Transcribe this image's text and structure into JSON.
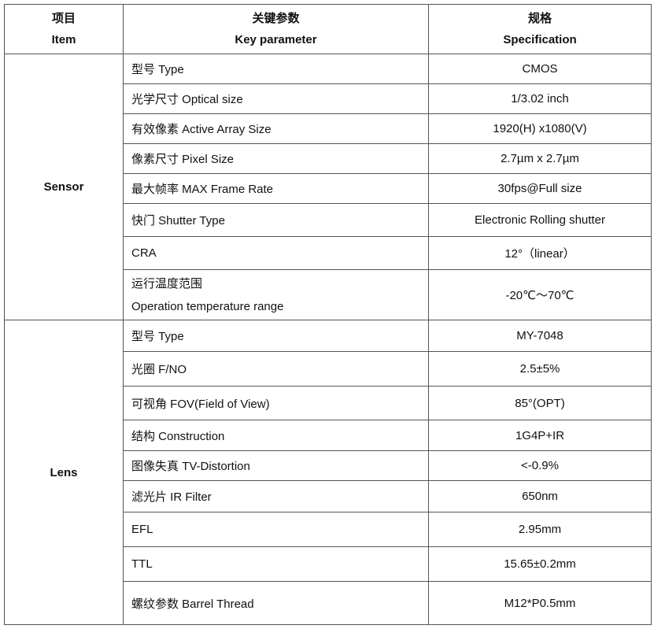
{
  "header": {
    "item_cn": "项目",
    "item_en": "Item",
    "param_cn": "关键参数",
    "param_en": "Key parameter",
    "spec_cn": "规格",
    "spec_en": "Specification"
  },
  "groups": [
    {
      "name": "Sensor",
      "rows": [
        {
          "param": "型号 Type",
          "spec": "CMOS"
        },
        {
          "param": "光学尺寸 Optical size",
          "spec": "1/3.02 inch"
        },
        {
          "param": "有效像素 Active Array Size",
          "spec": "1920(H) x1080(V)"
        },
        {
          "param": "像素尺寸 Pixel Size",
          "spec": "2.7µm x 2.7µm"
        },
        {
          "param": "最大帧率  MAX Frame Rate",
          "spec": "30fps@Full size"
        },
        {
          "param": "快门 Shutter Type",
          "spec": "Electronic Rolling shutter"
        },
        {
          "param": "CRA",
          "spec": "12°（linear）"
        },
        {
          "param": "运行温度范围",
          "param_en": "Operation temperature range",
          "spec": "-20℃～70℃"
        }
      ]
    },
    {
      "name": "Lens",
      "rows": [
        {
          "param": "型号 Type",
          "spec": "MY-7048"
        },
        {
          "param": "光圈 F/NO",
          "spec": "2.5±5%"
        },
        {
          "param": "可视角  FOV(Field of View)",
          "spec": "85°(OPT)"
        },
        {
          "param": "结构 Construction",
          "spec": "1G4P+IR"
        },
        {
          "param": "图像失真 TV-Distortion",
          "spec": "<-0.9%"
        },
        {
          "param": "滤光片 IR Filter",
          "spec": "650nm"
        },
        {
          "param": "EFL",
          "spec": "2.95mm"
        },
        {
          "param": "TTL",
          "spec": "15.65±0.2mm"
        },
        {
          "param": "螺纹参数 Barrel Thread",
          "spec": "M12*P0.5mm"
        }
      ]
    }
  ]
}
